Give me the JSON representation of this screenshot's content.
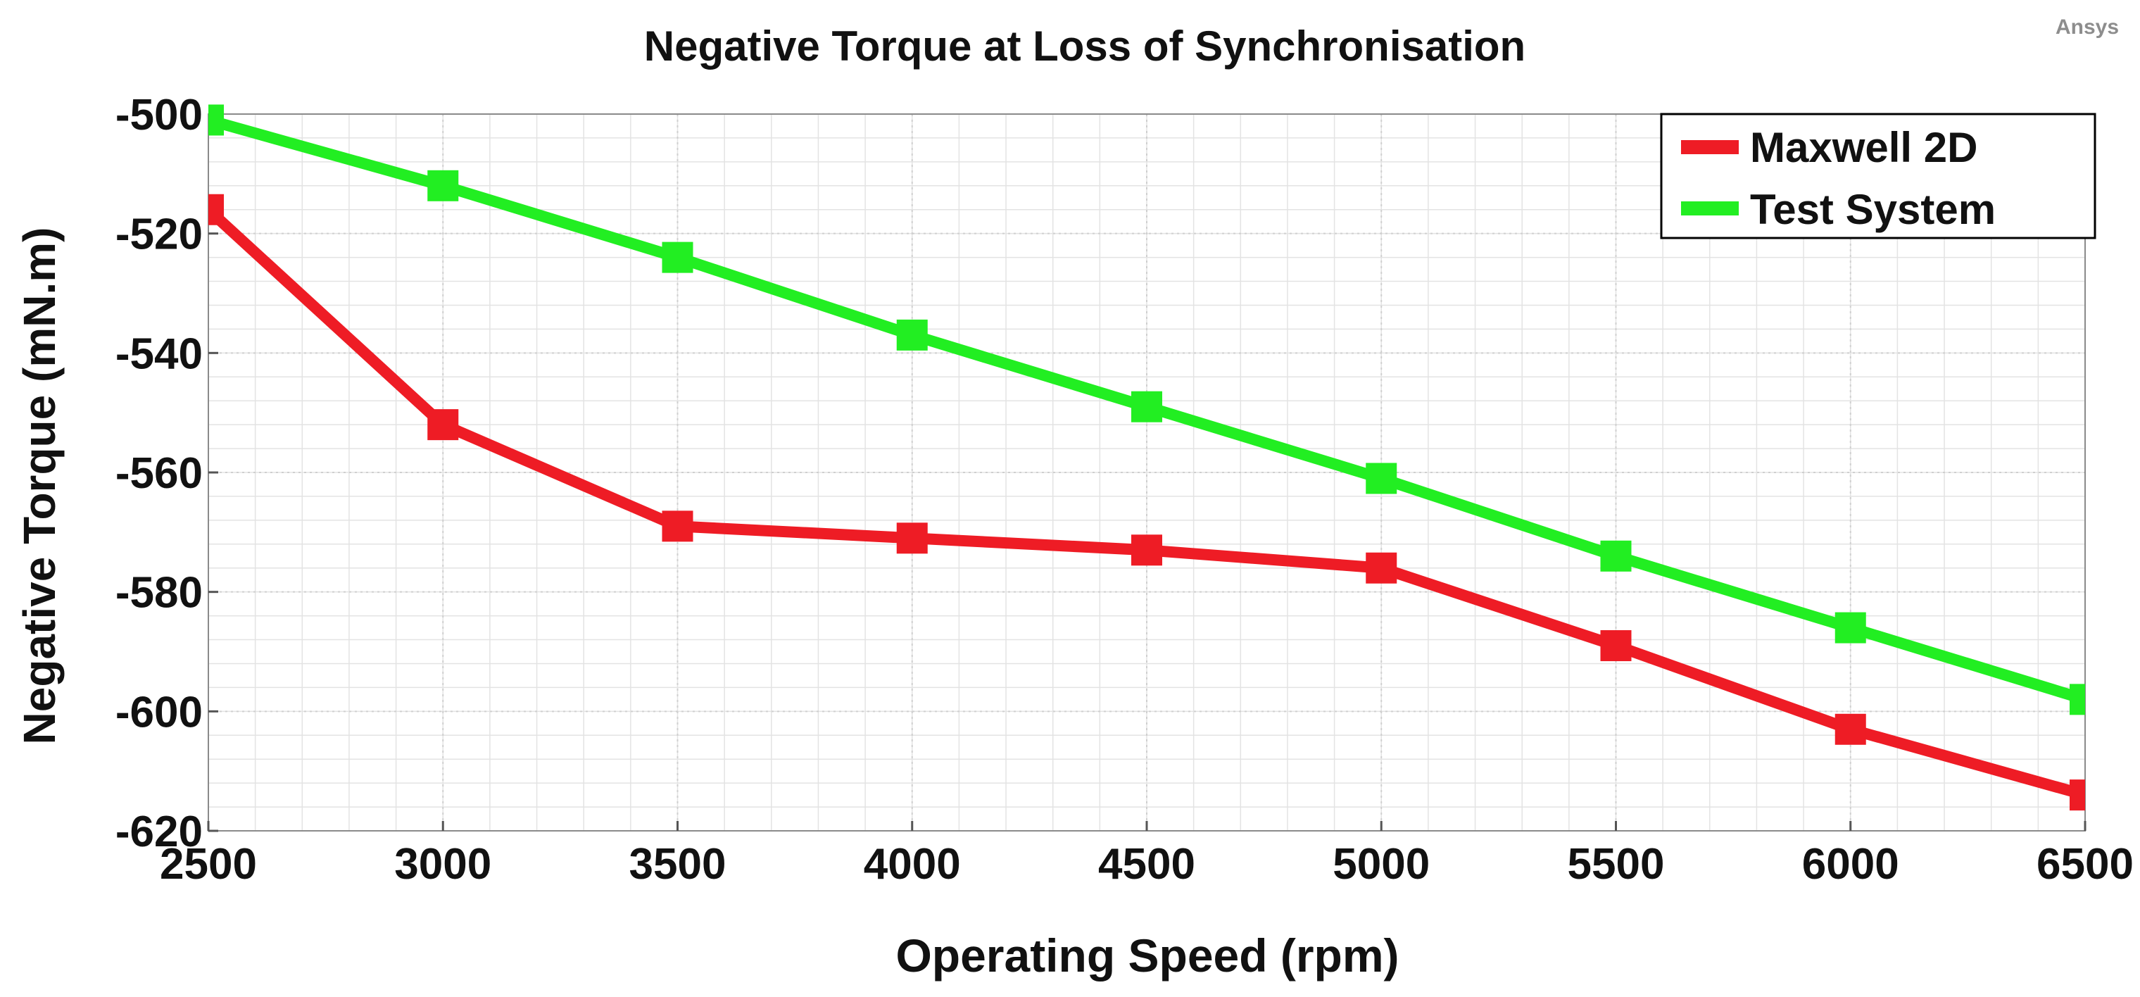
{
  "watermark": "Ansys",
  "chart_data": {
    "type": "line",
    "title": "Negative Torque at Loss of Synchronisation",
    "xlabel": "Operating Speed (rpm)",
    "ylabel": "Negative Torque (mN.m)",
    "xlim": [
      2500,
      6500
    ],
    "ylim": [
      -620,
      -500
    ],
    "x_ticks": [
      2500,
      3000,
      3500,
      4000,
      4500,
      5000,
      5500,
      6000,
      6500
    ],
    "x_tick_labels": [
      "2500",
      "3000",
      "3500",
      "4000",
      "4500",
      "5000",
      "5500",
      "6000",
      "6500"
    ],
    "y_ticks": [
      -500,
      -520,
      -540,
      -560,
      -580,
      -600,
      -620
    ],
    "y_tick_labels": [
      "-500",
      "-520",
      "-540",
      "-560",
      "-580",
      "-600",
      "-620"
    ],
    "grid": true,
    "legend_position": "top-right",
    "x": [
      2500,
      3000,
      3500,
      4000,
      4500,
      5000,
      5500,
      6000,
      6500
    ],
    "series": [
      {
        "name": "Maxwell 2D",
        "color": "#ee1c25",
        "marker": "square",
        "values": [
          -516,
          -552,
          -569,
          -571,
          -573,
          -576,
          -589,
          -603,
          -614
        ]
      },
      {
        "name": "Test System",
        "color": "#22ee22",
        "marker": "square",
        "values": [
          -501,
          -512,
          -524,
          -537,
          -549,
          -561,
          -574,
          -586,
          -598
        ]
      }
    ]
  }
}
